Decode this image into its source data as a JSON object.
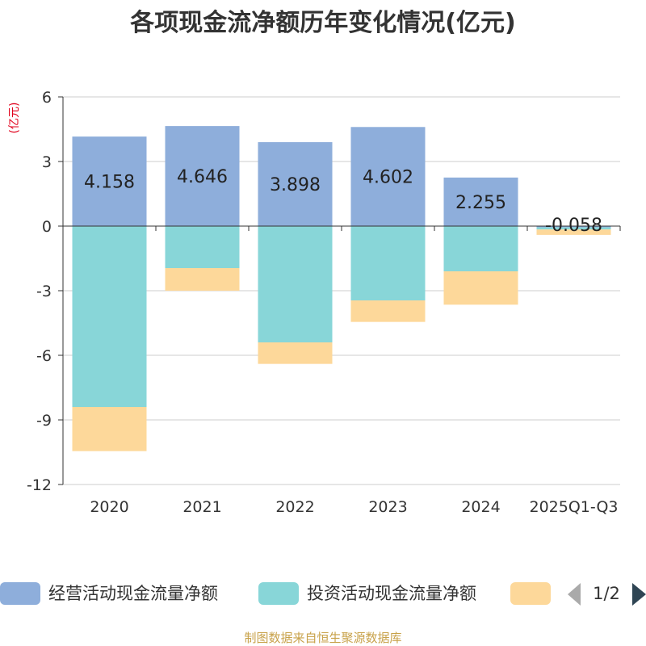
{
  "title": "各项现金流净额历年变化情况(亿元)",
  "unit_label": "(亿元)",
  "source": "制图数据来自恒生聚源数据库",
  "legend": {
    "items": [
      {
        "name": "经营活动现金流量净额",
        "color": "#8eaedb"
      },
      {
        "name": "投资活动现金流量净额",
        "color": "#88d6d8"
      },
      {
        "name": "",
        "color": "#fdd89a"
      }
    ],
    "page": "1/2",
    "prev_icon": "triangle-left-icon",
    "next_icon": "triangle-right-icon"
  },
  "chart_data": {
    "type": "bar",
    "stacked": true,
    "title": "各项现金流净额历年变化情况(亿元)",
    "ylabel": "(亿元)",
    "categories": [
      "2020",
      "2021",
      "2022",
      "2023",
      "2024",
      "2025Q1-Q3"
    ],
    "ylim": [
      -12,
      6
    ],
    "yticks": [
      6,
      3,
      0,
      -3,
      -6,
      -9,
      -12
    ],
    "series": [
      {
        "name": "经营活动现金流量净额",
        "color": "#8eaedb",
        "values": [
          4.158,
          4.646,
          3.898,
          4.602,
          2.255,
          -0.058
        ],
        "labels": [
          "4.158",
          "4.646",
          "3.898",
          "4.602",
          "2.255",
          "-0.058"
        ]
      },
      {
        "name": "投资活动现金流量净额",
        "color": "#88d6d8",
        "values": [
          -8.4,
          -1.95,
          -5.4,
          -3.45,
          -2.1,
          -0.1
        ]
      },
      {
        "name": "",
        "color": "#fdd89a",
        "values": [
          -2.05,
          -1.05,
          -1.0,
          -1.0,
          -1.55,
          -0.25
        ]
      }
    ]
  }
}
